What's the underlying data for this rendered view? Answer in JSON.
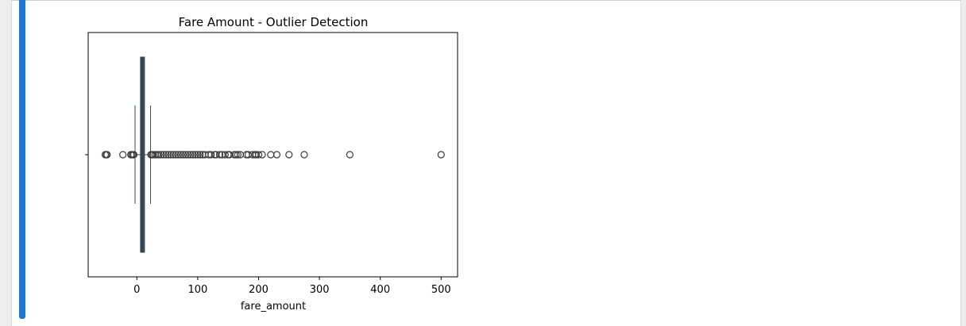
{
  "cell": {
    "indicator_color": "#1976d2"
  },
  "chart_data": {
    "type": "boxplot",
    "orientation": "horizontal",
    "title": "Fare Amount - Outlier Detection",
    "xlabel": "fare_amount",
    "ylabel": "",
    "xlim": [
      -80,
      527
    ],
    "xticks": [
      0,
      100,
      200,
      300,
      400,
      500
    ],
    "xtick_labels": [
      "0",
      "100",
      "200",
      "300",
      "400",
      "500"
    ],
    "grid": false,
    "box": {
      "color": "#3a4e5f",
      "whisker_low": -3,
      "q1": 6,
      "median": 8.5,
      "q3": 12.5,
      "whisker_high": 22.5
    },
    "outliers": [
      -52,
      -50,
      -49,
      -23,
      -10,
      -8,
      -6,
      -5,
      23,
      25,
      27,
      30,
      33,
      36,
      40,
      44,
      48,
      52,
      56,
      60,
      64,
      68,
      72,
      76,
      80,
      84,
      88,
      92,
      96,
      100,
      104,
      108,
      112,
      118,
      122,
      128,
      130,
      136,
      140,
      145,
      150,
      152,
      160,
      163,
      166,
      170,
      180,
      183,
      190,
      194,
      196,
      200,
      206,
      220,
      230,
      250,
      275,
      350,
      500
    ]
  }
}
